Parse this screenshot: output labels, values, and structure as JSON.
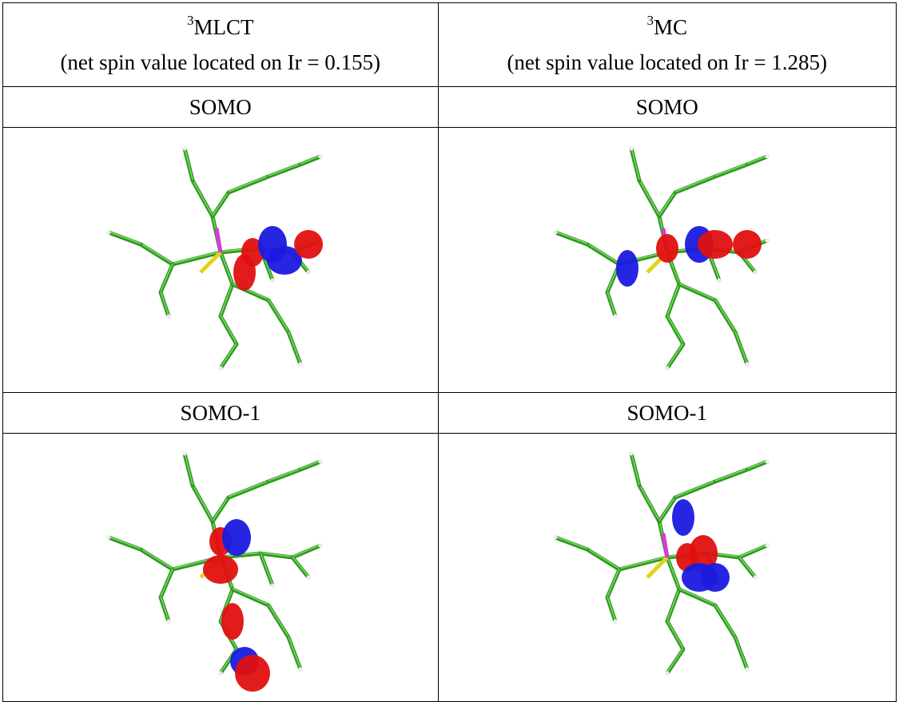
{
  "table": {
    "rows": [
      [
        {
          "sup": "3",
          "main": "MLCT",
          "note": "(net spin value located on Ir = 0.155)"
        },
        {
          "sup": "3",
          "main": "MC",
          "note": "(net spin value located on Ir = 1.285)"
        }
      ],
      [
        "SOMO",
        "SOMO"
      ],
      [
        "SOMO-1",
        "SOMO-1"
      ]
    ]
  }
}
